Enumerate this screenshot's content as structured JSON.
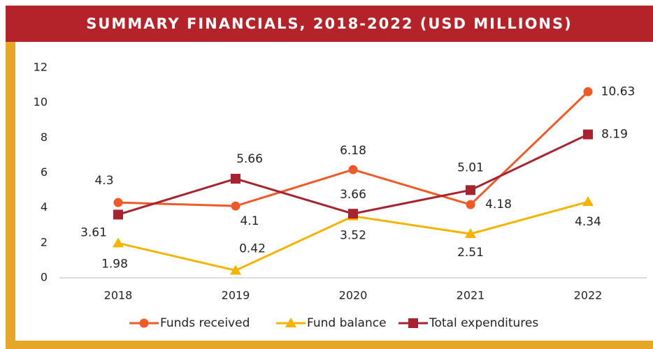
{
  "chart_data": {
    "type": "line",
    "title": "SUMMARY FINANCIALS, 2018-2022 (USD MILLIONS)",
    "categories": [
      "2018",
      "2019",
      "2020",
      "2021",
      "2022"
    ],
    "series": [
      {
        "name": "Funds received",
        "color": "#f05a28",
        "marker": "circle",
        "values": [
          4.3,
          4.1,
          6.18,
          4.18,
          10.63
        ]
      },
      {
        "name": "Fund balance",
        "color": "#f5b400",
        "marker": "triangle",
        "values": [
          1.98,
          0.42,
          3.52,
          2.51,
          4.34
        ]
      },
      {
        "name": "Total expenditures",
        "color": "#a6242f",
        "marker": "square",
        "values": [
          3.61,
          5.66,
          3.66,
          5.01,
          8.19
        ]
      }
    ],
    "ylim": [
      0,
      12
    ],
    "yticks": [
      0,
      2,
      4,
      6,
      8,
      10,
      12
    ],
    "grid": false,
    "legend": "bottom"
  }
}
